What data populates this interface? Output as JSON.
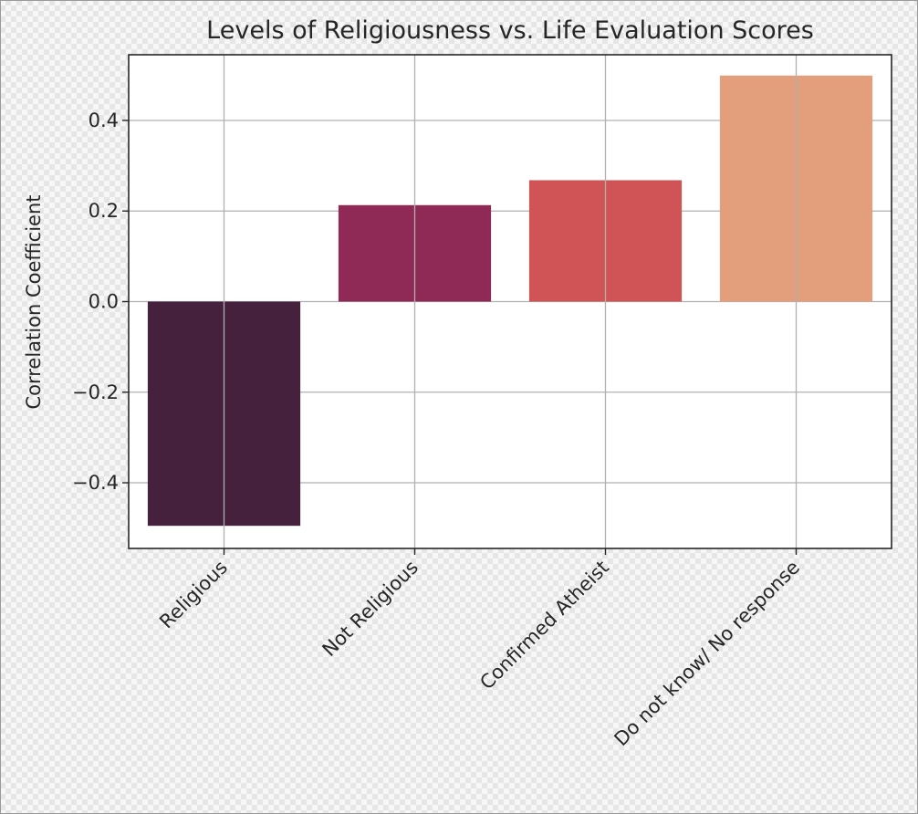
{
  "chart_data": {
    "type": "bar",
    "title": "Levels of Religiousness vs. Life Evaluation Scores",
    "xlabel": "",
    "ylabel": "Correlation Coefficient",
    "categories": [
      "Religious",
      "Not Religious",
      "Confirmed Atheist",
      "Do not know/ No response"
    ],
    "values": [
      -0.495,
      0.213,
      0.268,
      0.499
    ],
    "colors": [
      "#46213e",
      "#8f2a57",
      "#d05455",
      "#e39e7b"
    ],
    "ylim": [
      -0.545,
      0.545
    ],
    "yticks": [
      0.4,
      0.2,
      0.0,
      -0.2,
      -0.4
    ],
    "ytick_labels": [
      "0.4",
      "0.2",
      "0.0",
      "−0.2",
      "−0.4"
    ],
    "grid": true,
    "legend": "none"
  }
}
